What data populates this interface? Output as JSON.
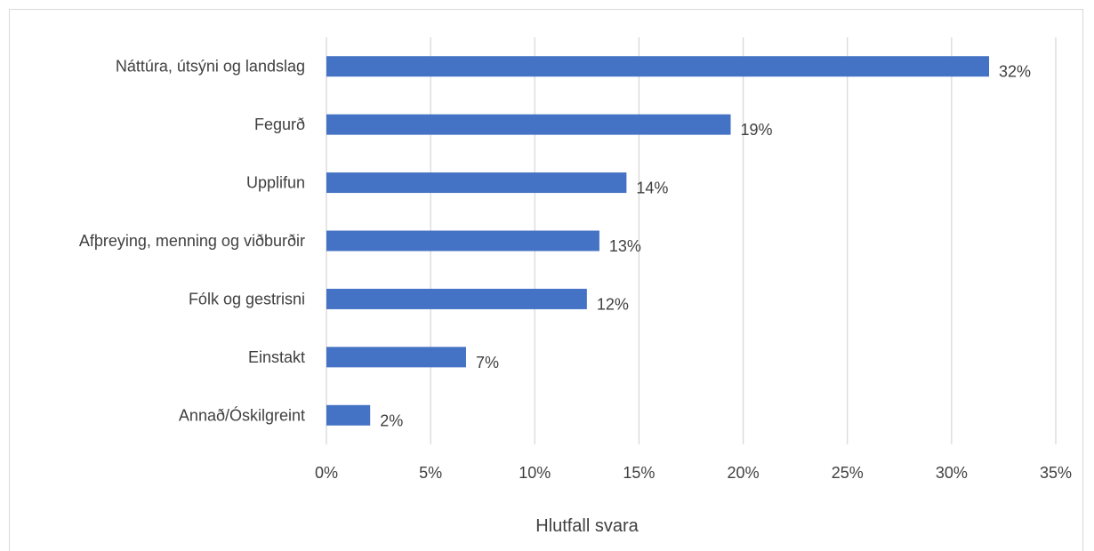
{
  "chart_data": {
    "type": "bar",
    "orientation": "horizontal",
    "categories": [
      "Náttúra, útsýni og landslag",
      "Fegurð",
      "Upplifun",
      "Afþreying, menning og viðburðir",
      "Fólk og gestrisni",
      "Einstakt",
      "Annað/Óskilgreint"
    ],
    "values": [
      31.8,
      19.4,
      14.4,
      13.1,
      12.5,
      6.7,
      2.1
    ],
    "data_labels": [
      "32%",
      "19%",
      "14%",
      "13%",
      "12%",
      "7%",
      "2%"
    ],
    "xlim": [
      0,
      35
    ],
    "x_ticks": [
      0,
      5,
      10,
      15,
      20,
      25,
      30,
      35
    ],
    "x_tick_labels": [
      "0%",
      "5%",
      "10%",
      "15%",
      "20%",
      "25%",
      "30%",
      "35%"
    ],
    "xlabel": "Hlutfall svara",
    "ylabel": "",
    "title": "",
    "grid": "vertical",
    "legend": "none",
    "bar_color": "#4472c4",
    "grid_color": "#d9d9d9"
  }
}
